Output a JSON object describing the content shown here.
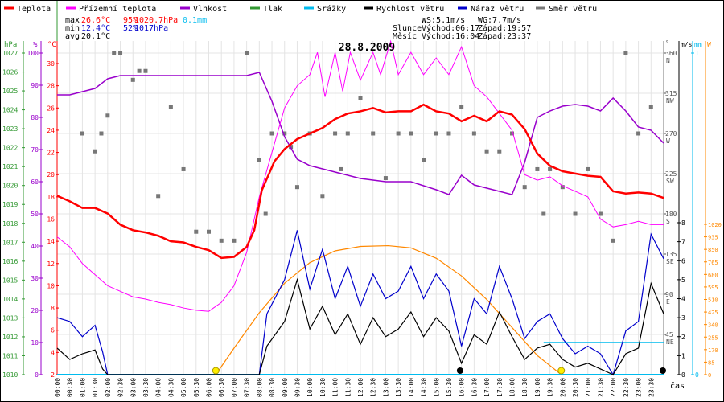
{
  "chart_data": {
    "type": "line",
    "title": "28.8.2009",
    "xlabel": "čas",
    "x_range_hours": [
      0,
      24
    ],
    "legend": [
      {
        "label": "Teplota",
        "color": "#ff0000"
      },
      {
        "label": "Přízemní teplota",
        "color": "#ff00ff"
      },
      {
        "label": "Vlhkost",
        "color": "#9900cc"
      },
      {
        "label": "Tlak",
        "color": "#339933"
      },
      {
        "label": "Srážky",
        "color": "#00bbee"
      },
      {
        "label": "Rychlost větru",
        "color": "#000000"
      },
      {
        "label": "Náraz větru",
        "color": "#0000cc"
      },
      {
        "label": "Směr větru",
        "color": "#777777"
      }
    ],
    "stats": {
      "max_label": "max",
      "min_label": "min",
      "avg_label": "avg",
      "max_temp": "26.6°C",
      "max_hum": "95%",
      "max_press": "1020.7hPa",
      "max_rain": "0.1mm",
      "min_temp": "12.4°C",
      "min_hum": "52%",
      "min_press": "1017hPa",
      "avg_temp": "20.1°C",
      "ws": "WS:5.1m/s",
      "wg": "WG:7.7m/s",
      "sun_label": "Slunce",
      "sun_rise": "Východ:06:17",
      "sun_set": "Západ:19:57",
      "moon_label": "Měsíc",
      "moon_rise": "Východ:16:04",
      "moon_set": "Západ:23:37"
    },
    "axes": {
      "pressure": {
        "unit": "hPa",
        "range": [
          1010,
          1027
        ],
        "ticks": [
          "1010",
          "1011",
          "1012",
          "1013",
          "1014",
          "1015",
          "1016",
          "1017",
          "1018",
          "1019",
          "1020",
          "1021",
          "1022",
          "1023",
          "1024",
          "1025",
          "1026",
          "1027"
        ]
      },
      "humidity": {
        "unit": "%",
        "range": [
          0,
          100
        ],
        "ticks": [
          "0",
          "10",
          "20",
          "30",
          "40",
          "50",
          "60",
          "70",
          "80",
          "90",
          "100"
        ]
      },
      "temperature": {
        "unit": "°C",
        "range": [
          2,
          30
        ],
        "ticks": [
          "2",
          "4",
          "6",
          "8",
          "10",
          "12",
          "14",
          "16",
          "18",
          "20",
          "22",
          "24",
          "26",
          "28",
          "30"
        ]
      },
      "direction": {
        "unit": "°",
        "range": [
          0,
          360
        ],
        "ticks": [
          [
            "360",
            "N"
          ],
          [
            "315",
            "NW"
          ],
          [
            "270",
            "W"
          ],
          [
            "225",
            "SW"
          ],
          [
            "180",
            "S"
          ],
          [
            "135",
            "SE"
          ],
          [
            "90",
            "E"
          ],
          [
            "45",
            "NE"
          ]
        ]
      },
      "wind": {
        "unit": "m/s",
        "range": [
          0,
          8
        ],
        "ticks": [
          "0",
          "1",
          "2",
          "3",
          "4",
          "5",
          "6",
          "7",
          "8"
        ]
      },
      "rain": {
        "unit": "mm",
        "range": [
          0,
          1
        ],
        "ticks": [
          "0",
          "1"
        ]
      },
      "solar": {
        "unit": "W",
        "range": [
          0,
          1020
        ],
        "ticks": [
          "0",
          "85",
          "170",
          "255",
          "340",
          "425",
          "510",
          "595",
          "680",
          "765",
          "850",
          "935",
          "1020"
        ]
      }
    },
    "x_ticks": [
      "00:00",
      "00:30",
      "01:00",
      "01:30",
      "02:00",
      "02:30",
      "03:00",
      "03:30",
      "04:00",
      "04:30",
      "05:00",
      "05:30",
      "06:00",
      "06:30",
      "07:00",
      "07:30",
      "08:00",
      "08:30",
      "09:00",
      "09:30",
      "10:00",
      "10:30",
      "11:00",
      "11:30",
      "12:00",
      "12:30",
      "13:00",
      "13:30",
      "14:00",
      "14:30",
      "15:00",
      "15:30",
      "16:00",
      "16:30",
      "17:00",
      "17:30",
      "18:00",
      "18:30",
      "19:00",
      "19:30",
      "20:00",
      "20:30",
      "21:00",
      "21:30",
      "22:00",
      "22:30",
      "23:00",
      "23:30"
    ],
    "series": {
      "temperature": [
        [
          0,
          18.1
        ],
        [
          0.5,
          17.6
        ],
        [
          1,
          17
        ],
        [
          1.5,
          17
        ],
        [
          2,
          16.5
        ],
        [
          2.5,
          15.5
        ],
        [
          3,
          15
        ],
        [
          3.5,
          14.8
        ],
        [
          4,
          14.5
        ],
        [
          4.5,
          14
        ],
        [
          5,
          13.9
        ],
        [
          5.5,
          13.5
        ],
        [
          6,
          13.2
        ],
        [
          6.5,
          12.5
        ],
        [
          7,
          12.6
        ],
        [
          7.5,
          13.5
        ],
        [
          7.8,
          15
        ],
        [
          8.1,
          18.6
        ],
        [
          8.6,
          21.2
        ],
        [
          9,
          22.3
        ],
        [
          9.5,
          23.2
        ],
        [
          10,
          23.7
        ],
        [
          10.5,
          24.2
        ],
        [
          11,
          25
        ],
        [
          11.5,
          25.5
        ],
        [
          12,
          25.7
        ],
        [
          12.5,
          26
        ],
        [
          13,
          25.6
        ],
        [
          13.5,
          25.7
        ],
        [
          14,
          25.7
        ],
        [
          14.5,
          26.3
        ],
        [
          15,
          25.7
        ],
        [
          15.5,
          25.5
        ],
        [
          16,
          24.8
        ],
        [
          16.5,
          25.3
        ],
        [
          17,
          24.8
        ],
        [
          17.5,
          25.7
        ],
        [
          18,
          25.4
        ],
        [
          18.5,
          24.1
        ],
        [
          19,
          21.9
        ],
        [
          19.5,
          20.8
        ],
        [
          20,
          20.3
        ],
        [
          20.5,
          20.1
        ],
        [
          21,
          19.9
        ],
        [
          21.5,
          19.8
        ],
        [
          22,
          18.5
        ],
        [
          22.5,
          18.3
        ],
        [
          23,
          18.4
        ],
        [
          23.5,
          18.3
        ],
        [
          24,
          17.9
        ]
      ],
      "apparent_temperature": [
        [
          0,
          14.4
        ],
        [
          0.5,
          13.5
        ],
        [
          1,
          12
        ],
        [
          1.5,
          11
        ],
        [
          2,
          10
        ],
        [
          2.5,
          9.5
        ],
        [
          3,
          9
        ],
        [
          3.5,
          8.8
        ],
        [
          4,
          8.5
        ],
        [
          4.5,
          8.3
        ],
        [
          5,
          8
        ],
        [
          5.5,
          7.8
        ],
        [
          6,
          7.7
        ],
        [
          6.5,
          8.5
        ],
        [
          7,
          10
        ],
        [
          7.5,
          13
        ],
        [
          8,
          18
        ],
        [
          8.5,
          22
        ],
        [
          9,
          26
        ],
        [
          9.5,
          28
        ],
        [
          10,
          29
        ],
        [
          10.3,
          31
        ],
        [
          10.6,
          27
        ],
        [
          11,
          31
        ],
        [
          11.3,
          27.5
        ],
        [
          11.6,
          31
        ],
        [
          12,
          28.5
        ],
        [
          12.5,
          31
        ],
        [
          12.8,
          29
        ],
        [
          13.2,
          32
        ],
        [
          13.5,
          29
        ],
        [
          14,
          31
        ],
        [
          14.5,
          29
        ],
        [
          15,
          30.5
        ],
        [
          15.5,
          29
        ],
        [
          16,
          31.5
        ],
        [
          16.5,
          28
        ],
        [
          17,
          27
        ],
        [
          17.5,
          25.5
        ],
        [
          18,
          24
        ],
        [
          18.5,
          20
        ],
        [
          19,
          19.5
        ],
        [
          19.5,
          19.8
        ],
        [
          20,
          19
        ],
        [
          20.5,
          18.5
        ],
        [
          21,
          18
        ],
        [
          21.5,
          16
        ],
        [
          22,
          15.3
        ],
        [
          22.5,
          15.5
        ],
        [
          23,
          15.8
        ],
        [
          23.5,
          15.5
        ],
        [
          24,
          15.5
        ]
      ],
      "humidity": [
        [
          0,
          87
        ],
        [
          0.5,
          87
        ],
        [
          1,
          88
        ],
        [
          1.5,
          89
        ],
        [
          2,
          92
        ],
        [
          2.5,
          93
        ],
        [
          3,
          93
        ],
        [
          3.5,
          93
        ],
        [
          4,
          93
        ],
        [
          4.5,
          93
        ],
        [
          5,
          93
        ],
        [
          6,
          93
        ],
        [
          7,
          93
        ],
        [
          7.5,
          93
        ],
        [
          8,
          94
        ],
        [
          8.5,
          85
        ],
        [
          9,
          74
        ],
        [
          9.5,
          67
        ],
        [
          10,
          65
        ],
        [
          10.5,
          64
        ],
        [
          11,
          63
        ],
        [
          12,
          61
        ],
        [
          13,
          60
        ],
        [
          14,
          60
        ],
        [
          15,
          57.5
        ],
        [
          15.5,
          56
        ],
        [
          16,
          62
        ],
        [
          16.5,
          59
        ],
        [
          17,
          58
        ],
        [
          17.5,
          57
        ],
        [
          18,
          56
        ],
        [
          18.5,
          66
        ],
        [
          19,
          80
        ],
        [
          19.5,
          82
        ],
        [
          20,
          83.5
        ],
        [
          20.5,
          84
        ],
        [
          21,
          83.5
        ],
        [
          21.5,
          82
        ],
        [
          22,
          86
        ],
        [
          22.5,
          82
        ],
        [
          23,
          77
        ],
        [
          23.5,
          76
        ],
        [
          24,
          72
        ]
      ],
      "wind_gust": [
        [
          0,
          3
        ],
        [
          0.5,
          2.8
        ],
        [
          1,
          2
        ],
        [
          1.5,
          2.6
        ],
        [
          1.8,
          1.2
        ],
        [
          2,
          0
        ],
        [
          8,
          0
        ],
        [
          8.3,
          3.2
        ],
        [
          9,
          5
        ],
        [
          9.5,
          7.6
        ],
        [
          10,
          4.5
        ],
        [
          10.5,
          6.6
        ],
        [
          11,
          4
        ],
        [
          11.5,
          5.7
        ],
        [
          12,
          3.6
        ],
        [
          12.5,
          5.3
        ],
        [
          13,
          4
        ],
        [
          13.5,
          4.4
        ],
        [
          14,
          5.7
        ],
        [
          14.5,
          4
        ],
        [
          15,
          5.3
        ],
        [
          15.5,
          4.4
        ],
        [
          16,
          1.5
        ],
        [
          16.5,
          4
        ],
        [
          17,
          3.2
        ],
        [
          17.5,
          5.7
        ],
        [
          18,
          4
        ],
        [
          18.5,
          1.9
        ],
        [
          19,
          2.8
        ],
        [
          19.5,
          3.2
        ],
        [
          20,
          1.9
        ],
        [
          20.5,
          1.1
        ],
        [
          21,
          1.5
        ],
        [
          21.5,
          1.1
        ],
        [
          22,
          0
        ],
        [
          22.5,
          2.3
        ],
        [
          23,
          2.8
        ],
        [
          23.5,
          7.4
        ],
        [
          24,
          6.1
        ]
      ],
      "wind_speed": [
        [
          0,
          1.4
        ],
        [
          0.5,
          0.8
        ],
        [
          1,
          1.1
        ],
        [
          1.5,
          1.3
        ],
        [
          1.8,
          0.3
        ],
        [
          2,
          0
        ],
        [
          8,
          0
        ],
        [
          8.3,
          1.5
        ],
        [
          9,
          2.8
        ],
        [
          9.5,
          5
        ],
        [
          10,
          2.4
        ],
        [
          10.5,
          3.6
        ],
        [
          11,
          2.1
        ],
        [
          11.5,
          3.2
        ],
        [
          12,
          1.6
        ],
        [
          12.5,
          3
        ],
        [
          13,
          2
        ],
        [
          13.5,
          2.4
        ],
        [
          14,
          3.3
        ],
        [
          14.5,
          2
        ],
        [
          15,
          3
        ],
        [
          15.5,
          2.3
        ],
        [
          16,
          0.6
        ],
        [
          16.5,
          2.1
        ],
        [
          17,
          1.6
        ],
        [
          17.5,
          3.3
        ],
        [
          18,
          2
        ],
        [
          18.5,
          0.8
        ],
        [
          19,
          1.4
        ],
        [
          19.5,
          1.6
        ],
        [
          20,
          0.8
        ],
        [
          20.5,
          0.4
        ],
        [
          21,
          0.6
        ],
        [
          21.5,
          0.3
        ],
        [
          22,
          0
        ],
        [
          22.5,
          1.1
        ],
        [
          23,
          1.4
        ],
        [
          23.5,
          4.8
        ],
        [
          24,
          3.2
        ]
      ],
      "rain_mm": [
        [
          19.25,
          0.1
        ],
        [
          24,
          0.1
        ]
      ],
      "solar_w": [
        [
          6.28,
          0
        ],
        [
          7,
          180
        ],
        [
          8,
          420
        ],
        [
          9,
          620
        ],
        [
          10,
          760
        ],
        [
          11,
          840
        ],
        [
          12,
          870
        ],
        [
          13.1,
          875
        ],
        [
          14,
          860
        ],
        [
          15,
          790
        ],
        [
          16,
          670
        ],
        [
          17,
          510
        ],
        [
          18,
          320
        ],
        [
          19,
          130
        ],
        [
          19.95,
          0
        ]
      ],
      "wind_direction": [
        [
          1,
          270
        ],
        [
          1.5,
          250
        ],
        [
          1.75,
          270
        ],
        [
          2,
          290
        ],
        [
          2.25,
          360
        ],
        [
          2.5,
          360
        ],
        [
          3,
          330
        ],
        [
          3.25,
          340
        ],
        [
          3.5,
          340
        ],
        [
          4,
          200
        ],
        [
          4.5,
          300
        ],
        [
          5,
          230
        ],
        [
          5.5,
          160
        ],
        [
          6,
          160
        ],
        [
          6.5,
          150
        ],
        [
          7,
          150
        ],
        [
          7.5,
          360
        ],
        [
          8,
          240
        ],
        [
          8.25,
          180
        ],
        [
          8.5,
          270
        ],
        [
          9,
          270
        ],
        [
          9.25,
          255
        ],
        [
          9.5,
          210
        ],
        [
          10,
          270
        ],
        [
          10.5,
          200
        ],
        [
          11,
          270
        ],
        [
          11.25,
          230
        ],
        [
          11.5,
          270
        ],
        [
          12,
          310
        ],
        [
          12.5,
          270
        ],
        [
          13,
          220
        ],
        [
          13.5,
          270
        ],
        [
          14,
          270
        ],
        [
          14.5,
          240
        ],
        [
          15,
          270
        ],
        [
          15.5,
          270
        ],
        [
          16,
          300
        ],
        [
          16.5,
          270
        ],
        [
          17,
          250
        ],
        [
          17.5,
          250
        ],
        [
          18,
          270
        ],
        [
          18.5,
          210
        ],
        [
          19,
          230
        ],
        [
          19.25,
          180
        ],
        [
          19.5,
          230
        ],
        [
          20,
          210
        ],
        [
          20.5,
          180
        ],
        [
          21,
          230
        ],
        [
          21.5,
          180
        ],
        [
          22,
          150
        ],
        [
          22.5,
          360
        ],
        [
          23,
          270
        ],
        [
          23.5,
          300
        ]
      ]
    },
    "markers": {
      "sun_rise_h": 6.28,
      "sun_set_h": 19.95,
      "moon_rise_h": 16.07,
      "moon_set_h": 23.62
    }
  }
}
